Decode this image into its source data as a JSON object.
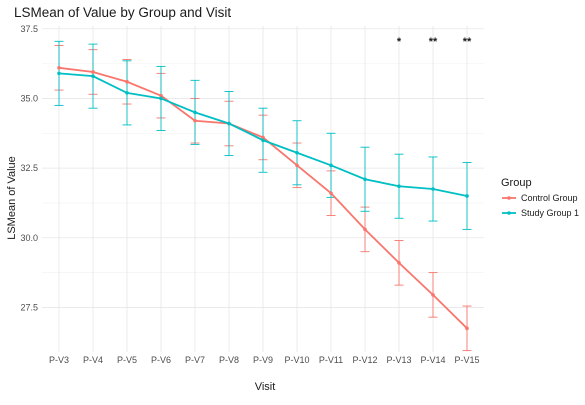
{
  "chart_data": {
    "type": "line",
    "title": "LSMean of Value by Group and Visit",
    "xlabel": "Visit",
    "ylabel": "LSMean of Value",
    "categories": [
      "P-V3",
      "P-V4",
      "P-V5",
      "P-V6",
      "P-V7",
      "P-V8",
      "P-V9",
      "P-V10",
      "P-V11",
      "P-V12",
      "P-V13",
      "P-V14",
      "P-V15"
    ],
    "ylim": [
      25.9,
      37.6
    ],
    "yticks": [
      27.5,
      30.0,
      32.5,
      35.0,
      37.5
    ],
    "ytick_labels": [
      "27.5",
      "30.0",
      "32.5",
      "35.0",
      "37.5"
    ],
    "grid": true,
    "legend": {
      "title": "Group",
      "position": "right"
    },
    "series": [
      {
        "name": "Control Group",
        "color": "#f8766d",
        "values": [
          36.1,
          35.95,
          35.6,
          35.1,
          34.2,
          34.1,
          33.6,
          32.6,
          31.6,
          30.3,
          29.1,
          27.95,
          26.75
        ],
        "lower": [
          35.3,
          35.15,
          34.8,
          34.3,
          33.4,
          33.3,
          32.8,
          31.8,
          30.8,
          29.5,
          28.3,
          27.15,
          25.95
        ],
        "upper": [
          36.9,
          36.75,
          36.4,
          35.9,
          35.0,
          34.9,
          34.4,
          33.4,
          32.4,
          31.1,
          29.9,
          28.75,
          27.55
        ]
      },
      {
        "name": "Study Group 1",
        "color": "#00bfc4",
        "values": [
          35.9,
          35.8,
          35.2,
          35.0,
          34.5,
          34.1,
          33.5,
          33.05,
          32.6,
          32.1,
          31.85,
          31.75,
          31.5
        ],
        "lower": [
          34.75,
          34.65,
          34.05,
          33.85,
          33.35,
          32.95,
          32.35,
          31.9,
          31.45,
          30.95,
          30.7,
          30.6,
          30.3
        ],
        "upper": [
          37.05,
          36.95,
          36.35,
          36.15,
          35.65,
          35.25,
          34.65,
          34.2,
          33.75,
          33.25,
          33.0,
          32.9,
          32.7
        ]
      }
    ],
    "annotations": [
      {
        "category": "P-V13",
        "text": "*"
      },
      {
        "category": "P-V14",
        "text": "**"
      },
      {
        "category": "P-V15",
        "text": "**"
      }
    ]
  }
}
